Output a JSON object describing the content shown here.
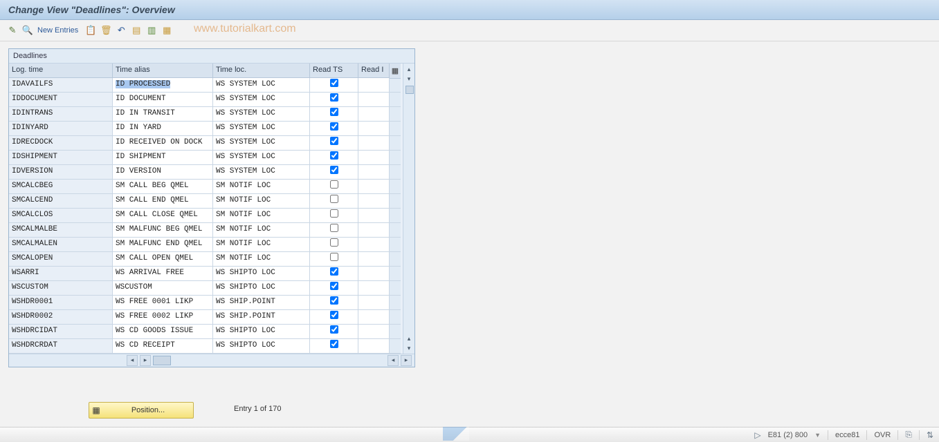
{
  "title": "Change View \"Deadlines\": Overview",
  "toolbar": {
    "icons": [
      {
        "name": "display-change-icon",
        "glyph": "✎",
        "color": "#5a7a3a"
      },
      {
        "name": "other-view-icon",
        "glyph": "🔍",
        "color": "#2d5a99"
      }
    ],
    "new_entries_label": "New Entries",
    "icons2": [
      {
        "name": "copy-icon",
        "glyph": "📋",
        "color": "#c79a3a"
      },
      {
        "name": "delete-icon",
        "glyph": "🗑",
        "color": "#c79a3a"
      },
      {
        "name": "undo-icon",
        "glyph": "↶",
        "color": "#2d5a99"
      },
      {
        "name": "select-all-icon",
        "glyph": "▤",
        "color": "#c79a3a"
      },
      {
        "name": "deselect-icon",
        "glyph": "▥",
        "color": "#5a8a3a"
      },
      {
        "name": "table-settings-icon",
        "glyph": "▦",
        "color": "#c79a3a"
      }
    ],
    "watermark": "www.tutorialkart.com"
  },
  "panel": {
    "title": "Deadlines",
    "columns": [
      "Log. time",
      "Time alias",
      "Time loc.",
      "Read TS",
      "Read I"
    ],
    "rows": [
      {
        "log": "IDAVAILFS",
        "alias": "ID PROCESSED",
        "alias_sel": true,
        "loc": "WS SYSTEM LOC",
        "ts": true
      },
      {
        "log": "IDDOCUMENT",
        "alias": "ID DOCUMENT",
        "alias_sel": false,
        "loc": "WS SYSTEM LOC",
        "ts": true
      },
      {
        "log": "IDINTRANS",
        "alias": "ID IN TRANSIT",
        "alias_sel": false,
        "loc": "WS SYSTEM LOC",
        "ts": true
      },
      {
        "log": "IDINYARD",
        "alias": "ID IN YARD",
        "alias_sel": false,
        "loc": "WS SYSTEM LOC",
        "ts": true
      },
      {
        "log": "IDRECDOCK",
        "alias": "ID RECEIVED ON DOCK",
        "alias_sel": false,
        "loc": "WS SYSTEM LOC",
        "ts": true
      },
      {
        "log": "IDSHIPMENT",
        "alias": "ID SHIPMENT",
        "alias_sel": false,
        "loc": "WS SYSTEM LOC",
        "ts": true
      },
      {
        "log": "IDVERSION",
        "alias": "ID VERSION",
        "alias_sel": false,
        "loc": "WS SYSTEM LOC",
        "ts": true
      },
      {
        "log": "SMCALCBEG",
        "alias": "SM CALL BEG    QMEL",
        "alias_sel": false,
        "loc": "SM NOTIF  LOC",
        "ts": false
      },
      {
        "log": "SMCALCEND",
        "alias": "SM CALL END    QMEL",
        "alias_sel": false,
        "loc": "SM NOTIF  LOC",
        "ts": false
      },
      {
        "log": "SMCALCLOS",
        "alias": "SM CALL CLOSE  QMEL",
        "alias_sel": false,
        "loc": "SM NOTIF  LOC",
        "ts": false
      },
      {
        "log": "SMCALMALBE",
        "alias": "SM MALFUNC BEG QMEL",
        "alias_sel": false,
        "loc": "SM NOTIF  LOC",
        "ts": false
      },
      {
        "log": "SMCALMALEN",
        "alias": "SM MALFUNC END QMEL",
        "alias_sel": false,
        "loc": "SM NOTIF  LOC",
        "ts": false
      },
      {
        "log": "SMCALOPEN",
        "alias": "SM CALL OPEN   QMEL",
        "alias_sel": false,
        "loc": "SM NOTIF  LOC",
        "ts": false
      },
      {
        "log": "WSARRI",
        "alias": "WS ARRIVAL     FREE",
        "alias_sel": false,
        "loc": "WS SHIPTO LOC",
        "ts": true
      },
      {
        "log": "WSCUSTOM",
        "alias": "WSCUSTOM",
        "alias_sel": false,
        "loc": "WS SHIPTO LOC",
        "ts": true
      },
      {
        "log": "WSHDR0001",
        "alias": "WS FREE 0001   LIKP",
        "alias_sel": false,
        "loc": "WS SHIP.POINT",
        "ts": true
      },
      {
        "log": "WSHDR0002",
        "alias": "WS FREE 0002   LIKP",
        "alias_sel": false,
        "loc": "WS SHIP.POINT",
        "ts": true
      },
      {
        "log": "WSHDRCIDAT",
        "alias": "WS CD GOODS ISSUE",
        "alias_sel": false,
        "loc": "WS SHIPTO LOC",
        "ts": true
      },
      {
        "log": "WSHDRCRDAT",
        "alias": "WS CD RECEIPT",
        "alias_sel": false,
        "loc": "WS SHIPTO LOC",
        "ts": true
      }
    ]
  },
  "position_button": "Position...",
  "entry_text": "Entry 1 of 170",
  "status": {
    "system": "E81 (2) 800",
    "server": "ecce81",
    "mode": "OVR"
  },
  "colors": {
    "titlebar_top": "#d3e3f3",
    "titlebar_bottom": "#b4cfe9",
    "panel_bg": "#e9f0f8",
    "header_bg": "#d8e3ef",
    "readonly_bg": "#e8eff7",
    "selection_bg": "#a8c8f0",
    "border": "#9ab5cf",
    "position_btn_top": "#fff7c8",
    "position_btn_bottom": "#f5e27a",
    "watermark": "#d98a3c"
  }
}
